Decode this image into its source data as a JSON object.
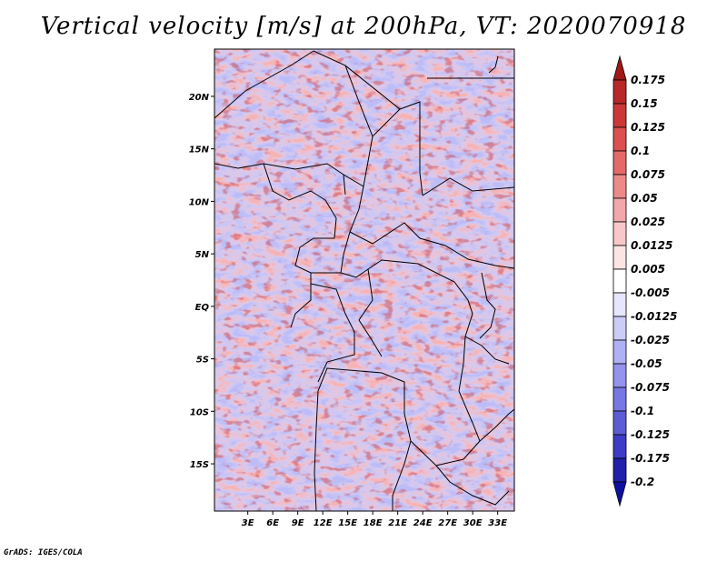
{
  "title": "Vertical velocity [m/s] at 200hPa, VT: 2020070918",
  "credit": "GrADS: IGES/COLA",
  "map": {
    "lon_range": [
      -1,
      35
    ],
    "lat_range": [
      -19.5,
      24.5
    ],
    "lon_ticks": [
      "3E",
      "6E",
      "9E",
      "12E",
      "15E",
      "18E",
      "21E",
      "24E",
      "27E",
      "30E",
      "33E"
    ],
    "lon_tick_values": [
      3,
      6,
      9,
      12,
      15,
      18,
      21,
      24,
      27,
      30,
      33
    ],
    "lat_ticks": [
      "20N",
      "15N",
      "10N",
      "5N",
      "EQ",
      "5S",
      "10S",
      "15S"
    ],
    "lat_tick_values": [
      20,
      15,
      10,
      5,
      0,
      -5,
      -10,
      -15
    ]
  },
  "colorbar": {
    "levels": [
      "0.175",
      "0.15",
      "0.125",
      "0.1",
      "0.075",
      "0.05",
      "0.025",
      "0.0125",
      "0.005",
      "-0.005",
      "-0.0125",
      "-0.025",
      "-0.05",
      "-0.075",
      "-0.1",
      "-0.125",
      "-0.175",
      "-0.2"
    ],
    "colors": [
      "#a01818",
      "#b82828",
      "#cc3838",
      "#dc5050",
      "#e46a6a",
      "#ec8a8a",
      "#f2a8a8",
      "#f8c8c8",
      "#fce4e4",
      "#ffffff",
      "#e6e6fc",
      "#ccccf8",
      "#b0b0f4",
      "#9494ec",
      "#7878e2",
      "#5c5cd6",
      "#3c3cc6",
      "#2020aa",
      "#1010a0"
    ]
  }
}
